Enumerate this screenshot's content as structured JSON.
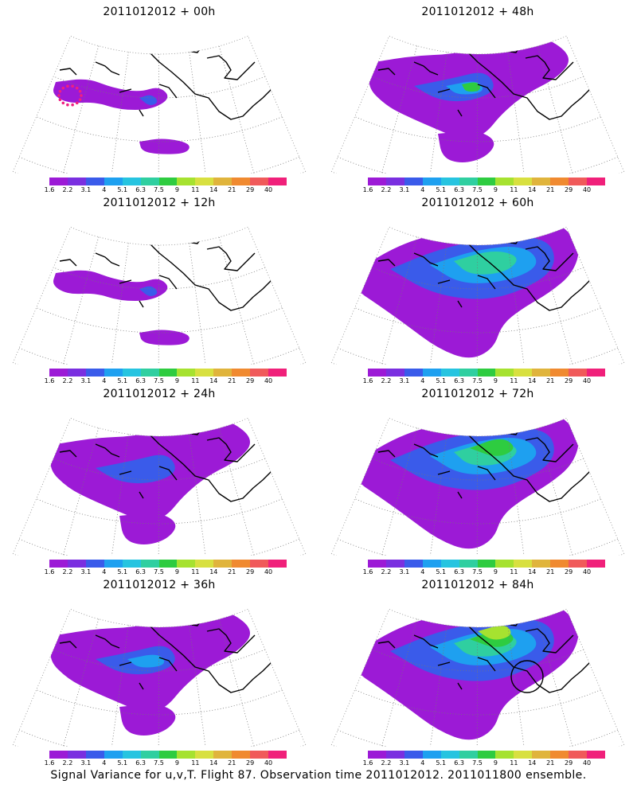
{
  "palette": [
    "#9c1ad6",
    "#7a2fe0",
    "#3a5bea",
    "#1ea0f0",
    "#26c4e0",
    "#2fcfa0",
    "#2ecc40",
    "#a6e230",
    "#d8e040",
    "#e0b43c",
    "#f08a30",
    "#f05a5a",
    "#f0207a"
  ],
  "colorbar_labels": [
    "1.6",
    "2.2",
    "3.1",
    "4",
    "5.1",
    "6.3",
    "7.5",
    "9",
    "11",
    "14",
    "21",
    "29",
    "40"
  ],
  "panels": [
    {
      "title": "2011012012 + 00h",
      "level": 0,
      "extra": "dots"
    },
    {
      "title": "2011012012 + 48h",
      "level": 3
    },
    {
      "title": "2011012012 + 12h",
      "level": 1
    },
    {
      "title": "2011012012 + 60h",
      "level": 4
    },
    {
      "title": "2011012012 + 24h",
      "level": 2
    },
    {
      "title": "2011012012 + 72h",
      "level": 5
    },
    {
      "title": "2011012012 + 36h",
      "level": 2.5
    },
    {
      "title": "2011012012 + 84h",
      "level": 6,
      "extra": "circle"
    }
  ],
  "caption": "Signal Variance for u,v,T. Flight 87. Observation time 2011012012. 2011011800 ensemble."
}
